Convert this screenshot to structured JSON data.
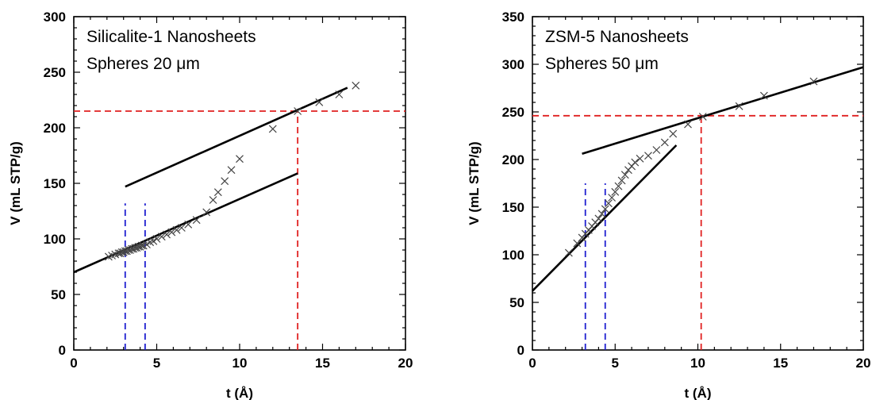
{
  "chart_data": [
    {
      "type": "scatter",
      "annotation_lines": [
        "Silicalite-1 Nanosheets",
        "Spheres 20 μm"
      ],
      "xlabel": "t (Å)",
      "ylabel": "V (mL STP/g)",
      "xlim": [
        0,
        20
      ],
      "ylim": [
        0,
        300
      ],
      "xticks": [
        "0",
        "5",
        "10",
        "15",
        "20"
      ],
      "yticks": [
        "0",
        "50",
        "100",
        "150",
        "200",
        "250",
        "300"
      ],
      "grid": false,
      "series": [
        {
          "marker": "×",
          "x": [
            2.1,
            2.3,
            2.5,
            2.7,
            2.8,
            2.9,
            3.0,
            3.1,
            3.2,
            3.3,
            3.4,
            3.5,
            3.6,
            3.7,
            3.8,
            3.9,
            4.0,
            4.1,
            4.2,
            4.4,
            4.6,
            4.8,
            5.0,
            5.3,
            5.6,
            5.9,
            6.2,
            6.5,
            6.9,
            7.4,
            8.0,
            8.4,
            8.7,
            9.1,
            9.5,
            10.0,
            12.0,
            13.5,
            14.8,
            16.0,
            17.0
          ],
          "y": [
            84,
            85,
            86,
            87,
            87,
            88,
            88,
            89,
            89,
            90,
            90,
            91,
            91,
            92,
            92,
            93,
            93,
            94,
            94,
            95,
            97,
            98,
            100,
            102,
            104,
            106,
            108,
            110,
            113,
            117,
            124,
            135,
            142,
            152,
            162,
            172,
            199,
            215,
            223,
            230,
            238
          ]
        }
      ],
      "fit_lines": [
        {
          "x": [
            0,
            13.5
          ],
          "y": [
            70,
            159
          ]
        },
        {
          "x": [
            3.1,
            16.5
          ],
          "y": [
            147,
            236
          ]
        }
      ],
      "reference_lines": [
        {
          "orientation": "vertical",
          "x": 3.1,
          "y_range": [
            0,
            132
          ],
          "color": "#1f1fd0"
        },
        {
          "orientation": "vertical",
          "x": 4.3,
          "y_range": [
            0,
            132
          ],
          "color": "#1f1fd0"
        },
        {
          "orientation": "vertical",
          "x": 13.5,
          "y_range": [
            0,
            215
          ],
          "color": "#e02020"
        },
        {
          "orientation": "horizontal",
          "y": 215,
          "x_range": [
            0,
            20
          ],
          "color": "#e02020"
        }
      ]
    },
    {
      "type": "scatter",
      "annotation_lines": [
        "ZSM-5 Nanosheets",
        "Spheres 50 μm"
      ],
      "xlabel": "t (Å)",
      "ylabel": "V (mL STP/g)",
      "xlim": [
        0,
        20
      ],
      "ylim": [
        0,
        350
      ],
      "xticks": [
        "0",
        "5",
        "10",
        "15",
        "20"
      ],
      "yticks": [
        "0",
        "50",
        "100",
        "150",
        "200",
        "250",
        "300",
        "350"
      ],
      "grid": false,
      "series": [
        {
          "marker": "×",
          "x": [
            2.2,
            2.7,
            3.0,
            3.2,
            3.4,
            3.6,
            3.8,
            4.0,
            4.2,
            4.4,
            4.6,
            4.8,
            5.0,
            5.2,
            5.4,
            5.6,
            5.8,
            6.0,
            6.2,
            6.5,
            7.0,
            7.5,
            8.0,
            8.5,
            9.4,
            10.3,
            12.5,
            14.0,
            17.0
          ],
          "y": [
            102,
            112,
            118,
            122,
            126,
            130,
            134,
            138,
            143,
            148,
            154,
            160,
            166,
            172,
            178,
            184,
            189,
            193,
            197,
            201,
            204,
            210,
            218,
            227,
            237,
            245,
            256,
            267,
            282
          ]
        }
      ],
      "fit_lines": [
        {
          "x": [
            0,
            8.7
          ],
          "y": [
            62,
            215
          ]
        },
        {
          "x": [
            3.0,
            20
          ],
          "y": [
            206,
            297
          ]
        }
      ],
      "reference_lines": [
        {
          "orientation": "vertical",
          "x": 3.2,
          "y_range": [
            0,
            175
          ],
          "color": "#1f1fd0"
        },
        {
          "orientation": "vertical",
          "x": 4.4,
          "y_range": [
            0,
            175
          ],
          "color": "#1f1fd0"
        },
        {
          "orientation": "vertical",
          "x": 10.2,
          "y_range": [
            0,
            246
          ],
          "color": "#e02020"
        },
        {
          "orientation": "horizontal",
          "y": 246,
          "x_range": [
            0,
            20
          ],
          "color": "#e02020"
        }
      ]
    }
  ]
}
